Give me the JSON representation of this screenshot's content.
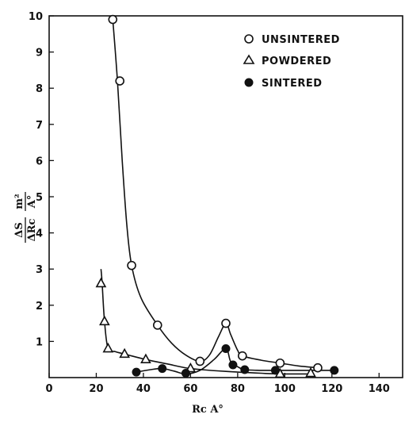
{
  "chart_data": {
    "type": "scatter",
    "title": "",
    "xlabel": "Rc A°",
    "ylabel_parts": {
      "top": "ΔS",
      "bottom": "ΔRc",
      "unit_top": "m²",
      "unit_bottom": "A°"
    },
    "xlim": [
      0,
      150
    ],
    "ylim": [
      0,
      10
    ],
    "x_ticks": [
      0,
      20,
      40,
      60,
      80,
      100,
      120,
      140
    ],
    "y_ticks": [
      1,
      2,
      3,
      4,
      5,
      6,
      7,
      8,
      9,
      10
    ],
    "grid": false,
    "legend_position": "top-right",
    "series": [
      {
        "name": "UNSINTERED",
        "marker": "open-circle",
        "points": [
          [
            27,
            9.9
          ],
          [
            30,
            8.2
          ],
          [
            35,
            3.1
          ],
          [
            46,
            1.45
          ],
          [
            64,
            0.45
          ],
          [
            75,
            1.5
          ],
          [
            82,
            0.6
          ],
          [
            98,
            0.4
          ],
          [
            114,
            0.27
          ]
        ],
        "curve": [
          [
            27,
            9.9
          ],
          [
            29,
            8.2
          ],
          [
            31,
            6.0
          ],
          [
            33,
            4.2
          ],
          [
            35,
            3.1
          ],
          [
            39,
            2.2
          ],
          [
            46,
            1.45
          ],
          [
            52,
            0.95
          ],
          [
            58,
            0.62
          ],
          [
            64,
            0.45
          ],
          [
            68,
            0.62
          ],
          [
            72,
            1.15
          ],
          [
            75,
            1.5
          ],
          [
            77,
            1.2
          ],
          [
            80,
            0.75
          ],
          [
            82,
            0.6
          ],
          [
            90,
            0.48
          ],
          [
            98,
            0.4
          ],
          [
            106,
            0.32
          ],
          [
            114,
            0.27
          ]
        ]
      },
      {
        "name": "POWDERED",
        "marker": "open-triangle",
        "points": [
          [
            22,
            2.6
          ],
          [
            23.5,
            1.55
          ],
          [
            25,
            0.8
          ],
          [
            32,
            0.65
          ],
          [
            41,
            0.5
          ],
          [
            60,
            0.25
          ],
          [
            98,
            0.1
          ],
          [
            111,
            0.12
          ]
        ],
        "curve": [
          [
            22,
            3.0
          ],
          [
            22.5,
            2.6
          ],
          [
            23.5,
            1.55
          ],
          [
            25,
            0.8
          ],
          [
            28,
            0.72
          ],
          [
            32,
            0.65
          ],
          [
            41,
            0.5
          ],
          [
            50,
            0.38
          ],
          [
            60,
            0.25
          ],
          [
            75,
            0.17
          ],
          [
            90,
            0.12
          ],
          [
            98,
            0.1
          ],
          [
            111,
            0.1
          ]
        ]
      },
      {
        "name": "SINTERED",
        "marker": "filled-circle",
        "points": [
          [
            37,
            0.15
          ],
          [
            48,
            0.25
          ],
          [
            58,
            0.12
          ],
          [
            75,
            0.8
          ],
          [
            78,
            0.35
          ],
          [
            83,
            0.22
          ],
          [
            96,
            0.2
          ],
          [
            121,
            0.2
          ]
        ],
        "curve": [
          [
            37,
            0.15
          ],
          [
            43,
            0.22
          ],
          [
            48,
            0.25
          ],
          [
            53,
            0.18
          ],
          [
            58,
            0.1
          ],
          [
            64,
            0.2
          ],
          [
            70,
            0.5
          ],
          [
            75,
            0.8
          ],
          [
            77,
            0.45
          ],
          [
            80,
            0.3
          ],
          [
            83,
            0.22
          ],
          [
            90,
            0.2
          ],
          [
            96,
            0.2
          ],
          [
            110,
            0.2
          ],
          [
            121,
            0.2
          ]
        ]
      }
    ]
  }
}
